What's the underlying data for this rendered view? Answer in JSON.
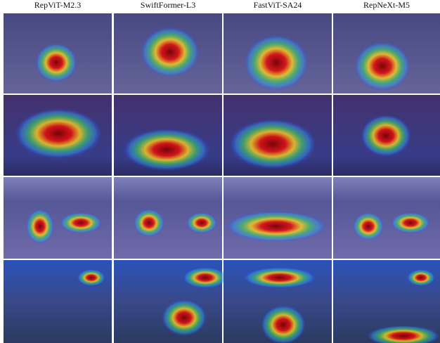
{
  "columns": [
    "RepViT-M2.3",
    "SwiftFormer-L3",
    "FastViT-SA24",
    "RepNeXt-M5"
  ]
}
